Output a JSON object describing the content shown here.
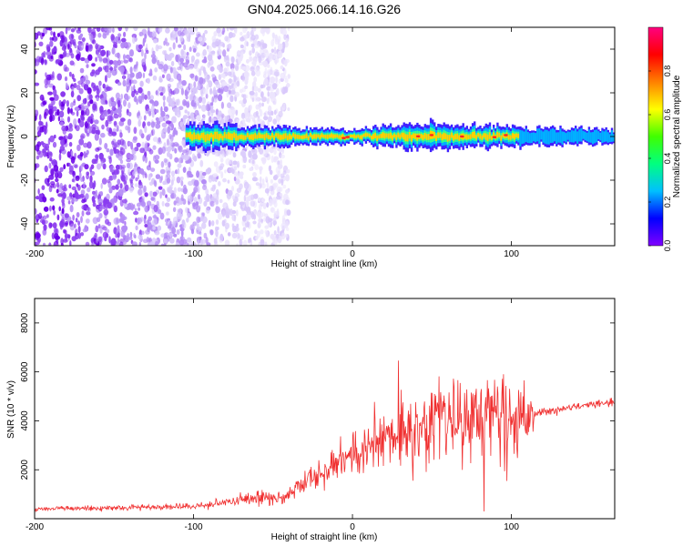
{
  "figure": {
    "title": "GN04.2025.066.14.16.G26"
  },
  "chart_data": [
    {
      "type": "heatmap",
      "xlabel": "Height of straight line (km)",
      "ylabel": "Frequency (Hz)",
      "xlim": [
        -200,
        165
      ],
      "ylim": [
        -50,
        50
      ],
      "xticks": [
        -200,
        -100,
        0,
        100
      ],
      "yticks": [
        -40,
        -20,
        0,
        20,
        40
      ],
      "grid": false,
      "colorbar": {
        "label": "Normalized spectral amplitude",
        "range": [
          0,
          1
        ],
        "ticks": [
          0.0,
          0.2,
          0.4,
          0.6,
          0.8
        ],
        "colormap": [
          "#8000ff",
          "#0000ff",
          "#00c0ff",
          "#00ff80",
          "#40ff00",
          "#ffff00",
          "#ff8000",
          "#ff0000",
          "#ff0080"
        ]
      },
      "features": {
        "scattered_noise_x_range": [
          -200,
          -40
        ],
        "signal_band": [
          {
            "x": -105,
            "half_width_hz": 6
          },
          {
            "x": -80,
            "half_width_hz": 5
          },
          {
            "x": -40,
            "half_width_hz": 4
          },
          {
            "x": 0,
            "half_width_hz": 3
          },
          {
            "x": 45,
            "half_width_hz": 6
          },
          {
            "x": 70,
            "half_width_hz": 5
          },
          {
            "x": 105,
            "half_width_hz": 4
          },
          {
            "x": 165,
            "half_width_hz": 3
          }
        ]
      }
    },
    {
      "type": "line",
      "xlabel": "Height of straight line (km)",
      "ylabel": "SNR (10 * v/v)",
      "xlim": [
        -200,
        165
      ],
      "ylim": [
        0,
        9000
      ],
      "xticks": [
        -200,
        -100,
        0,
        100
      ],
      "yticks": [
        2000,
        4000,
        6000,
        8000
      ],
      "grid": false,
      "color": "#f03030",
      "series": [
        {
          "x": [
            -200,
            -150,
            -100,
            -80,
            -60,
            -50,
            -40,
            -25,
            -10,
            0,
            20,
            40,
            60,
            80,
            100,
            112,
            115,
            140,
            165
          ],
          "mean": [
            400,
            450,
            500,
            700,
            900,
            800,
            1000,
            1700,
            2200,
            2600,
            3300,
            3800,
            4000,
            4200,
            4000,
            4200,
            4300,
            4600,
            4800
          ],
          "spread": [
            150,
            150,
            200,
            300,
            500,
            400,
            400,
            900,
            1200,
            1300,
            1800,
            2500,
            2600,
            2800,
            2800,
            1800,
            250,
            200,
            200
          ]
        }
      ]
    }
  ]
}
